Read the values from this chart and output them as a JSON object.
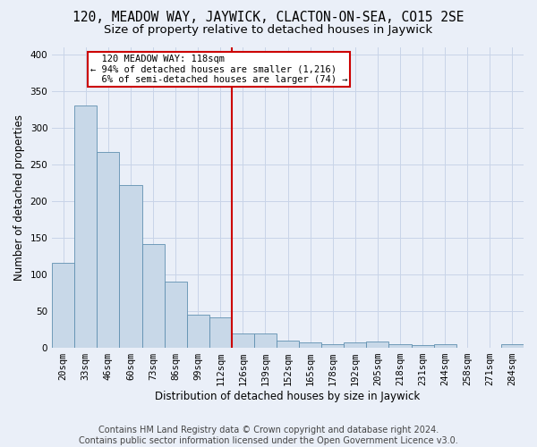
{
  "title": "120, MEADOW WAY, JAYWICK, CLACTON-ON-SEA, CO15 2SE",
  "subtitle": "Size of property relative to detached houses in Jaywick",
  "xlabel": "Distribution of detached houses by size in Jaywick",
  "ylabel": "Number of detached properties",
  "footer_line1": "Contains HM Land Registry data © Crown copyright and database right 2024.",
  "footer_line2": "Contains public sector information licensed under the Open Government Licence v3.0.",
  "bar_labels": [
    "20sqm",
    "33sqm",
    "46sqm",
    "60sqm",
    "73sqm",
    "86sqm",
    "99sqm",
    "112sqm",
    "126sqm",
    "139sqm",
    "152sqm",
    "165sqm",
    "178sqm",
    "192sqm",
    "205sqm",
    "218sqm",
    "231sqm",
    "244sqm",
    "258sqm",
    "271sqm",
    "284sqm"
  ],
  "bar_values": [
    116,
    330,
    267,
    222,
    141,
    90,
    45,
    42,
    19,
    19,
    10,
    7,
    5,
    8,
    9,
    5,
    4,
    5,
    0,
    0,
    5
  ],
  "bar_color": "#c8d8e8",
  "bar_edge_color": "#6090b0",
  "vline_x": 7.5,
  "vline_color": "#cc0000",
  "annotation_text": "  120 MEADOW WAY: 118sqm\n← 94% of detached houses are smaller (1,216)\n  6% of semi-detached houses are larger (74) →",
  "annotation_box_color": "#ffffff",
  "annotation_box_edge_color": "#cc0000",
  "ylim": [
    0,
    410
  ],
  "yticks": [
    0,
    50,
    100,
    150,
    200,
    250,
    300,
    350,
    400
  ],
  "grid_color": "#c8d4e8",
  "background_color": "#eaeff8",
  "title_fontsize": 10.5,
  "subtitle_fontsize": 9.5,
  "axis_label_fontsize": 8.5,
  "tick_fontsize": 7.5,
  "footer_fontsize": 7,
  "ann_fontsize": 7.5
}
